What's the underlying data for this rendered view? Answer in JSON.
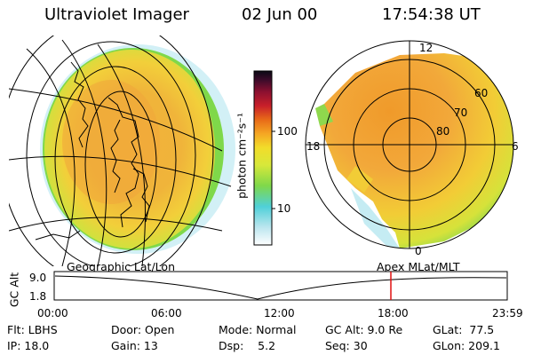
{
  "header": {
    "instrument": "Ultraviolet Imager",
    "date": "02 Jun 00",
    "time": "17:54:38 UT"
  },
  "colorbar": {
    "label": "photon cm⁻²s⁻¹",
    "ticks": [
      "100",
      "10"
    ],
    "scale": "log",
    "colors": [
      "#ffffff",
      "#bde6ef",
      "#4fd0d8",
      "#7fd84a",
      "#d8e83a",
      "#f2dc2a",
      "#f5a623",
      "#e86a18",
      "#c81f2a",
      "#8c1030",
      "#3a0b2a",
      "#0a0a14"
    ]
  },
  "left_panel": {
    "caption": "Geographic Lat/Lon"
  },
  "right_panel": {
    "caption": "Apex MLat/MLT",
    "mlt_labels": [
      "12",
      "18",
      "6",
      "0"
    ],
    "lat_labels": [
      "60",
      "70",
      "80"
    ]
  },
  "timeline": {
    "axis_label": "GC Alt",
    "y_ticks": [
      "9.0",
      "1.8"
    ],
    "x_ticks": [
      "00:00",
      "06:00",
      "12:00",
      "18:00",
      "23:59"
    ],
    "current_marker_hours": 17.9
  },
  "info": {
    "flt": "Flt: LBHS",
    "ip": "IP: 18.0",
    "door": "Door: Open",
    "gain": "Gain: 13",
    "mode": "Mode: Normal",
    "dsp": "Dsp:    5.2",
    "gc_alt": "GC Alt: 9.0 Re",
    "seq": "Seq: 30",
    "glat": "GLat:  77.5",
    "glon": "GLon: 209.1"
  }
}
